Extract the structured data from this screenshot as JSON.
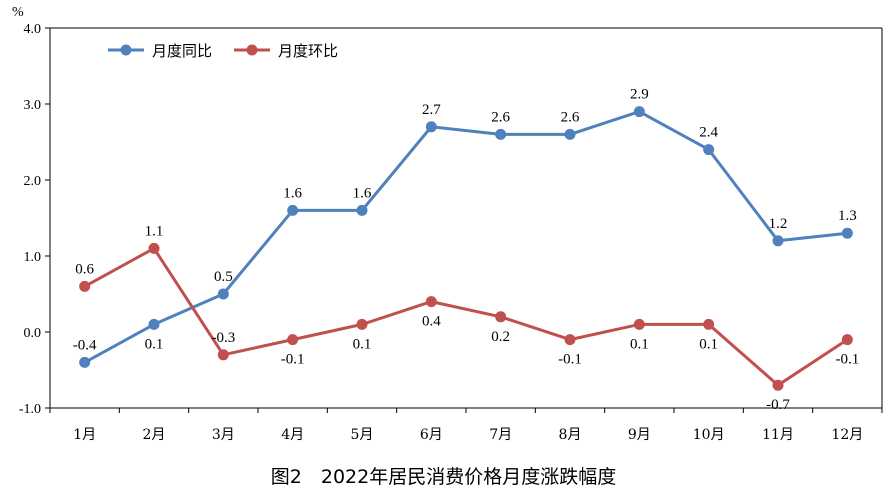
{
  "chart_data": {
    "type": "line",
    "title": "图2　2022年居民消费价格月度涨跌幅度",
    "unit_label": "%",
    "xlabel": "",
    "ylabel": "",
    "categories": [
      "1月",
      "2月",
      "3月",
      "4月",
      "5月",
      "6月",
      "7月",
      "8月",
      "9月",
      "10月",
      "11月",
      "12月"
    ],
    "ylim": [
      -1.0,
      4.0
    ],
    "yticks": [
      "-1.0",
      "0.0",
      "1.0",
      "2.0",
      "3.0",
      "4.0"
    ],
    "legend_position": "top-left",
    "grid": false,
    "series": [
      {
        "name": "月度同比",
        "color": "#4f81bd",
        "values": [
          -0.4,
          0.1,
          0.5,
          1.6,
          1.6,
          2.7,
          2.6,
          2.6,
          2.9,
          2.4,
          1.2,
          1.3
        ],
        "labels": [
          "-0.4",
          "0.1",
          "0.5",
          "1.6",
          "1.6",
          "2.7",
          "2.6",
          "2.6",
          "2.9",
          "2.4",
          "1.2",
          "1.3"
        ]
      },
      {
        "name": "月度环比",
        "color": "#c0504d",
        "values": [
          0.6,
          1.1,
          -0.3,
          -0.1,
          0.1,
          0.4,
          0.2,
          -0.1,
          0.1,
          0.1,
          -0.7,
          -0.1
        ],
        "labels": [
          "0.6",
          "1.1",
          "-0.3",
          "-0.1",
          "0.1",
          "0.4",
          "0.2",
          "-0.1",
          "0.1",
          "0.1",
          "-0.7",
          "-0.1"
        ]
      }
    ]
  }
}
